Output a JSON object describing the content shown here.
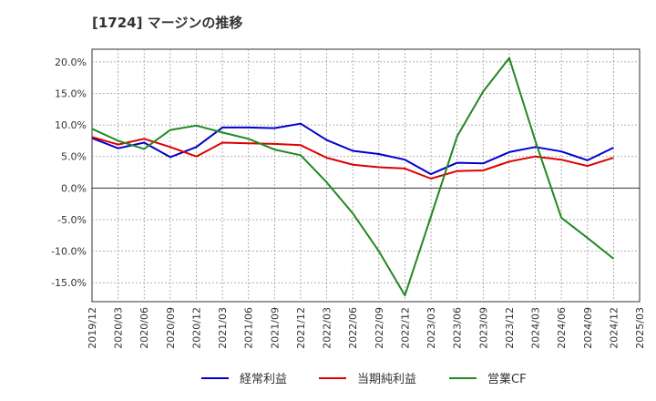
{
  "chart_data": {
    "type": "line",
    "title": "[1724]  マージンの推移",
    "x": [
      "2019/12",
      "2020/03",
      "2020/06",
      "2020/09",
      "2020/12",
      "2021/03",
      "2021/06",
      "2021/09",
      "2021/12",
      "2022/03",
      "2022/06",
      "2022/09",
      "2022/12",
      "2023/03",
      "2023/06",
      "2023/09",
      "2023/12",
      "2024/03",
      "2024/06",
      "2024/09",
      "2024/12"
    ],
    "x_ticks": [
      "2019/12",
      "2020/03",
      "2020/06",
      "2020/09",
      "2020/12",
      "2021/03",
      "2021/06",
      "2021/09",
      "2021/12",
      "2022/03",
      "2022/06",
      "2022/09",
      "2022/12",
      "2023/03",
      "2023/06",
      "2023/09",
      "2023/12",
      "2024/03",
      "2024/06",
      "2024/09",
      "2024/12",
      "2025/03"
    ],
    "y_ticks": [
      20,
      15,
      10,
      5,
      0,
      -5,
      -10,
      -15
    ],
    "y_tick_labels": [
      "20.0%",
      "15.0%",
      "10.0%",
      "5.0%",
      "0.0%",
      "-5.0%",
      "-10.0%",
      "-15.0%"
    ],
    "ylim": [
      -18,
      22
    ],
    "grid": true,
    "legend_position": "bottom",
    "series": [
      {
        "name": "経常利益",
        "color": "#0000cc",
        "values": [
          7.9,
          6.3,
          7.2,
          4.9,
          6.5,
          9.6,
          9.6,
          9.5,
          10.2,
          7.6,
          5.9,
          5.4,
          4.5,
          2.2,
          4.0,
          3.9,
          5.7,
          6.5,
          5.8,
          4.4,
          6.4
        ]
      },
      {
        "name": "当期純利益",
        "color": "#dd0000",
        "values": [
          8.1,
          6.9,
          7.8,
          6.5,
          5.0,
          7.2,
          7.1,
          7.0,
          6.8,
          4.8,
          3.7,
          3.3,
          3.1,
          1.5,
          2.7,
          2.8,
          4.2,
          5.0,
          4.5,
          3.5,
          4.8
        ]
      },
      {
        "name": "営業CF",
        "color": "#228822",
        "values": [
          9.4,
          7.5,
          6.2,
          9.2,
          9.9,
          8.8,
          7.8,
          6.1,
          5.2,
          0.9,
          -4.0,
          -10.0,
          -17.0,
          -4.5,
          8.2,
          15.3,
          20.6,
          7.5,
          -4.7,
          -7.9,
          -11.2
        ]
      }
    ]
  }
}
